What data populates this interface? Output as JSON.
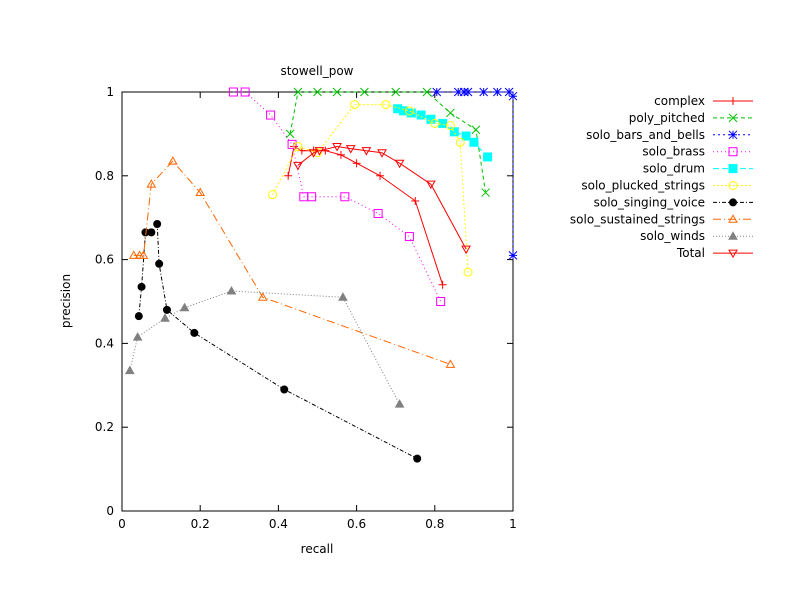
{
  "chart_data": {
    "type": "line",
    "title": "stowell_pow",
    "xlabel": "recall",
    "ylabel": "precision",
    "xlim": [
      0,
      1
    ],
    "ylim": [
      0,
      1
    ],
    "x_ticks": [
      "0",
      "0.2",
      "0.4",
      "0.6",
      "0.8",
      "1"
    ],
    "y_ticks": [
      "0",
      "0.2",
      "0.4",
      "0.6",
      "0.8",
      "1"
    ],
    "grid": false,
    "legend_position": "right",
    "series": [
      {
        "name": "complex",
        "color": "#ff0000",
        "marker": "plus",
        "dash": "",
        "points": [
          [
            0.425,
            0.8
          ],
          [
            0.44,
            0.87
          ],
          [
            0.46,
            0.86
          ],
          [
            0.49,
            0.86
          ],
          [
            0.52,
            0.86
          ],
          [
            0.56,
            0.85
          ],
          [
            0.6,
            0.83
          ],
          [
            0.66,
            0.8
          ],
          [
            0.75,
            0.74
          ],
          [
            0.82,
            0.54
          ]
        ]
      },
      {
        "name": "poly_pitched",
        "color": "#00c000",
        "marker": "x",
        "dash": "4,3",
        "points": [
          [
            0.43,
            0.9
          ],
          [
            0.45,
            1.0
          ],
          [
            0.5,
            1.0
          ],
          [
            0.55,
            1.0
          ],
          [
            0.62,
            1.0
          ],
          [
            0.7,
            1.0
          ],
          [
            0.78,
            1.0
          ],
          [
            0.84,
            0.95
          ],
          [
            0.905,
            0.91
          ],
          [
            0.93,
            0.76
          ]
        ]
      },
      {
        "name": "solo_bars_and_bells",
        "color": "#0000ff",
        "marker": "star",
        "dash": "2,3",
        "points": [
          [
            0.805,
            1.0
          ],
          [
            0.86,
            1.0
          ],
          [
            0.875,
            1.0
          ],
          [
            0.885,
            1.0
          ],
          [
            0.925,
            1.0
          ],
          [
            0.96,
            1.0
          ],
          [
            0.99,
            1.0
          ],
          [
            1.0,
            0.99
          ],
          [
            1.0,
            0.61
          ]
        ]
      },
      {
        "name": "solo_brass",
        "color": "#ff00ff",
        "marker": "box",
        "dash": "1,3",
        "points": [
          [
            0.285,
            1.0
          ],
          [
            0.315,
            1.0
          ],
          [
            0.38,
            0.945
          ],
          [
            0.435,
            0.875
          ],
          [
            0.465,
            0.75
          ],
          [
            0.485,
            0.75
          ],
          [
            0.57,
            0.75
          ],
          [
            0.655,
            0.71
          ],
          [
            0.735,
            0.655
          ],
          [
            0.815,
            0.5
          ]
        ]
      },
      {
        "name": "solo_drum",
        "color": "#00ffff",
        "marker": "filled-box",
        "dash": "6,3",
        "points": [
          [
            0.705,
            0.96
          ],
          [
            0.72,
            0.955
          ],
          [
            0.74,
            0.95
          ],
          [
            0.765,
            0.945
          ],
          [
            0.79,
            0.935
          ],
          [
            0.82,
            0.925
          ],
          [
            0.85,
            0.905
          ],
          [
            0.88,
            0.895
          ],
          [
            0.9,
            0.88
          ],
          [
            0.935,
            0.845
          ]
        ]
      },
      {
        "name": "solo_plucked_strings",
        "color": "#ffff00",
        "marker": "circle",
        "dash": "2,2",
        "points": [
          [
            0.385,
            0.755
          ],
          [
            0.45,
            0.87
          ],
          [
            0.5,
            0.855
          ],
          [
            0.595,
            0.97
          ],
          [
            0.675,
            0.97
          ],
          [
            0.735,
            0.955
          ],
          [
            0.8,
            0.925
          ],
          [
            0.84,
            0.92
          ],
          [
            0.865,
            0.88
          ],
          [
            0.885,
            0.57
          ]
        ]
      },
      {
        "name": "solo_singing_voice",
        "color": "#000000",
        "marker": "filled-circle",
        "dash": "4,2,1,2",
        "points": [
          [
            0.043,
            0.465
          ],
          [
            0.05,
            0.535
          ],
          [
            0.06,
            0.665
          ],
          [
            0.075,
            0.665
          ],
          [
            0.09,
            0.685
          ],
          [
            0.095,
            0.59
          ],
          [
            0.115,
            0.48
          ],
          [
            0.185,
            0.425
          ],
          [
            0.415,
            0.29
          ],
          [
            0.755,
            0.125
          ]
        ]
      },
      {
        "name": "solo_sustained_strings",
        "color": "#ff6600",
        "marker": "triangle",
        "dash": "8,3,1,3",
        "points": [
          [
            0.03,
            0.61
          ],
          [
            0.045,
            0.61
          ],
          [
            0.055,
            0.61
          ],
          [
            0.075,
            0.78
          ],
          [
            0.13,
            0.835
          ],
          [
            0.2,
            0.76
          ],
          [
            0.36,
            0.51
          ],
          [
            0.84,
            0.35
          ]
        ]
      },
      {
        "name": "solo_winds",
        "color": "#808080",
        "marker": "filled-triangle",
        "dash": "1,2",
        "points": [
          [
            0.02,
            0.335
          ],
          [
            0.04,
            0.415
          ],
          [
            0.11,
            0.46
          ],
          [
            0.16,
            0.485
          ],
          [
            0.28,
            0.525
          ],
          [
            0.565,
            0.51
          ],
          [
            0.71,
            0.255
          ]
        ]
      },
      {
        "name": "Total",
        "color": "#ff0000",
        "marker": "down-triangle",
        "dash": "",
        "points": [
          [
            0.45,
            0.825
          ],
          [
            0.49,
            0.855
          ],
          [
            0.505,
            0.86
          ],
          [
            0.55,
            0.87
          ],
          [
            0.585,
            0.865
          ],
          [
            0.625,
            0.86
          ],
          [
            0.665,
            0.855
          ],
          [
            0.71,
            0.83
          ],
          [
            0.79,
            0.78
          ],
          [
            0.88,
            0.625
          ]
        ]
      }
    ]
  }
}
